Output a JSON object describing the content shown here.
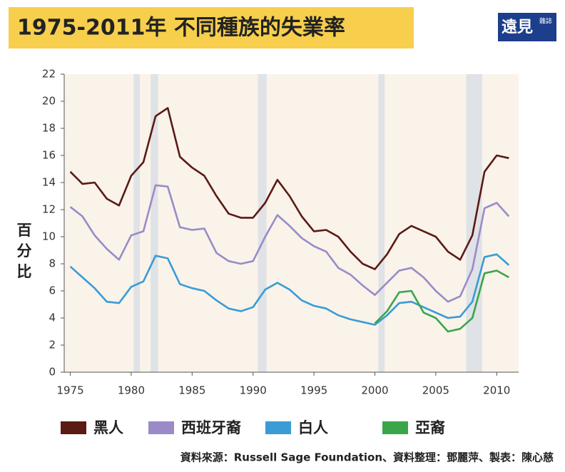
{
  "logo": {
    "name": "遠見",
    "sub": "雜誌"
  },
  "chart_data": {
    "type": "line",
    "title": "1975-2011年 不同種族的失業率",
    "y_label": "百分比",
    "source": "資料來源：Russell Sage Foundation、資料整理：鄧麗萍、製表：陳心慈",
    "x": [
      1975,
      1976,
      1977,
      1978,
      1979,
      1980,
      1981,
      1982,
      1983,
      1984,
      1985,
      1986,
      1987,
      1988,
      1989,
      1990,
      1991,
      1992,
      1993,
      1994,
      1995,
      1996,
      1997,
      1998,
      1999,
      2000,
      2001,
      2002,
      2003,
      2004,
      2005,
      2006,
      2007,
      2008,
      2009,
      2010,
      2011
    ],
    "series": [
      {
        "name": "黑人",
        "color": "#5b1a14",
        "values": [
          14.8,
          13.9,
          14.0,
          12.8,
          12.3,
          14.5,
          15.5,
          18.9,
          19.5,
          15.9,
          15.1,
          14.5,
          13.0,
          11.7,
          11.4,
          11.4,
          12.5,
          14.2,
          13.0,
          11.5,
          10.4,
          10.5,
          10.0,
          8.9,
          8.0,
          7.6,
          8.7,
          10.2,
          10.8,
          10.4,
          10.0,
          8.9,
          8.3,
          10.1,
          14.8,
          16.0,
          15.8
        ]
      },
      {
        "name": "西班牙裔",
        "color": "#9b8ac8",
        "values": [
          12.2,
          11.5,
          10.1,
          9.1,
          8.3,
          10.1,
          10.4,
          13.8,
          13.7,
          10.7,
          10.5,
          10.6,
          8.8,
          8.2,
          8.0,
          8.2,
          10.0,
          11.6,
          10.8,
          9.9,
          9.3,
          8.9,
          7.7,
          7.2,
          6.4,
          5.7,
          6.6,
          7.5,
          7.7,
          7.0,
          6.0,
          5.2,
          5.6,
          7.6,
          12.1,
          12.5,
          11.5
        ]
      },
      {
        "name": "白人",
        "color": "#3a9bd5",
        "values": [
          7.8,
          7.0,
          6.2,
          5.2,
          5.1,
          6.3,
          6.7,
          8.6,
          8.4,
          6.5,
          6.2,
          6.0,
          5.3,
          4.7,
          4.5,
          4.8,
          6.1,
          6.6,
          6.1,
          5.3,
          4.9,
          4.7,
          4.2,
          3.9,
          3.7,
          3.5,
          4.2,
          5.1,
          5.2,
          4.8,
          4.4,
          4.0,
          4.1,
          5.2,
          8.5,
          8.7,
          7.9
        ]
      },
      {
        "name": "亞裔",
        "color": "#3aa64a",
        "values": [
          null,
          null,
          null,
          null,
          null,
          null,
          null,
          null,
          null,
          null,
          null,
          null,
          null,
          null,
          null,
          null,
          null,
          null,
          null,
          null,
          null,
          null,
          null,
          null,
          null,
          3.6,
          4.5,
          5.9,
          6.0,
          4.4,
          4.0,
          3.0,
          3.2,
          4.0,
          7.3,
          7.5,
          7.0
        ]
      }
    ],
    "shaded_periods": [
      [
        1980.2,
        1980.7
      ],
      [
        1981.6,
        1982.2
      ],
      [
        1990.4,
        1991.1
      ],
      [
        2000.3,
        2000.8
      ],
      [
        2007.5,
        2008.8
      ]
    ],
    "shade_color": "#dfe2e6",
    "plot_background": "#f9f3ea",
    "xlim": [
      1974.5,
      2011.8
    ],
    "xticks": [
      1975,
      1980,
      1985,
      1990,
      1995,
      2000,
      2005,
      2010
    ],
    "ylim": [
      0,
      22
    ],
    "yticks": [
      0,
      2,
      4,
      6,
      8,
      10,
      12,
      14,
      16,
      18,
      20,
      22
    ],
    "grid": false,
    "legend": "bottom"
  }
}
